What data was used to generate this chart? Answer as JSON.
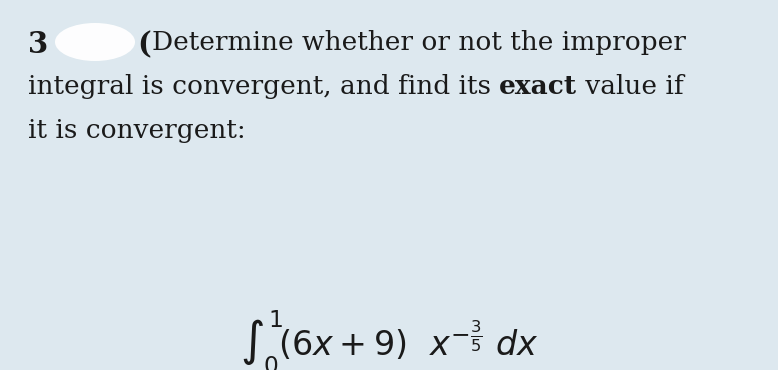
{
  "background_color": "#dde8ef",
  "text_color": "#1a1a1a",
  "number": "3",
  "blob_color": "#ffffff",
  "line1": "Determine whether or not the improper",
  "line2_pre": "integral is convergent, and find its ",
  "line2_bold": "exact",
  "line2_post": " value if",
  "line3": "it is convergent:",
  "font_size_main": 19,
  "font_size_formula": 24,
  "fig_width": 7.78,
  "fig_height": 3.7,
  "dpi": 100
}
